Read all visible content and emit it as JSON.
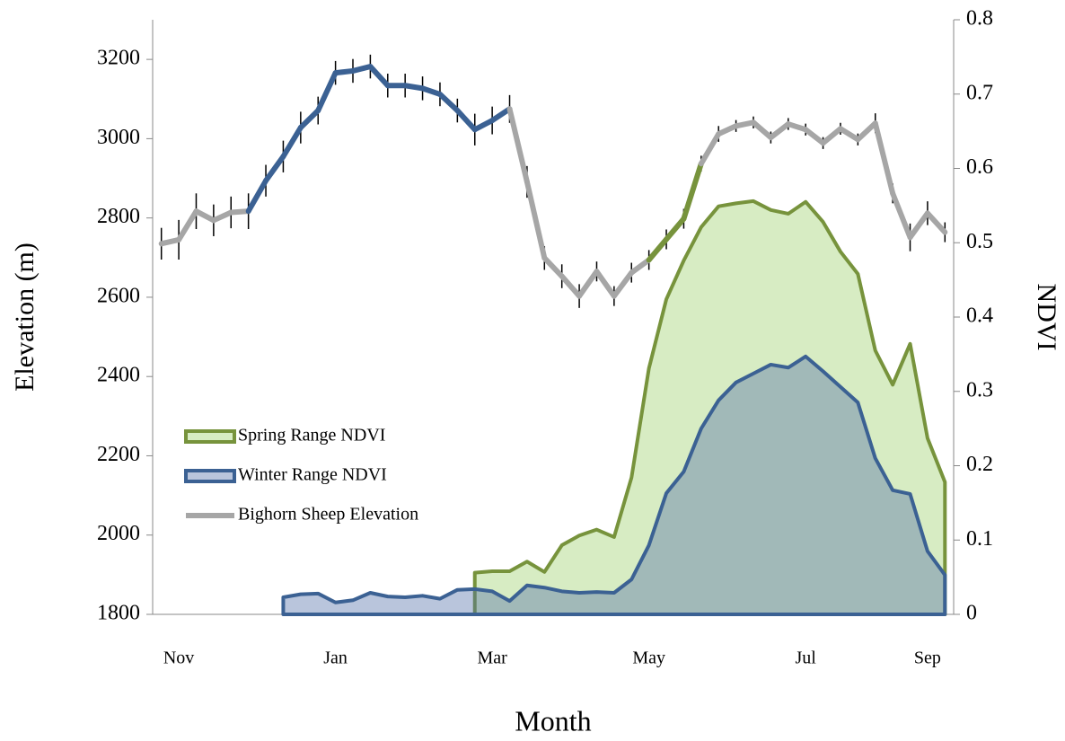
{
  "chart_data": {
    "type": "line",
    "xlabel": "Month",
    "ylabel": "Elevation (m)",
    "y2label": "NDVI",
    "categories": [
      null,
      "Nov",
      null,
      null,
      null,
      null,
      null,
      null,
      null,
      null,
      "Jan",
      null,
      null,
      null,
      null,
      null,
      null,
      null,
      null,
      "Mar",
      null,
      null,
      null,
      null,
      null,
      null,
      null,
      null,
      "May",
      null,
      null,
      null,
      null,
      null,
      null,
      null,
      null,
      "Jul",
      null,
      null,
      null,
      null,
      null,
      null,
      "Sep",
      null
    ],
    "ylim": [
      1800,
      3300
    ],
    "yticks": [
      1800,
      2000,
      2200,
      2400,
      2600,
      2800,
      3000,
      3200
    ],
    "y2lim": [
      0,
      0.8
    ],
    "y2ticks": [
      0,
      0.1,
      0.2,
      0.3,
      0.4,
      0.5,
      0.6,
      0.7,
      0.8
    ],
    "legend": "left",
    "series": [
      {
        "name": "Spring Range NDVI",
        "type": "area",
        "axis": "y2",
        "color": "#77933c",
        "fill": "#d7ecc3",
        "fill_opacity": 1,
        "values": [
          null,
          null,
          null,
          null,
          null,
          null,
          null,
          null,
          null,
          null,
          null,
          null,
          null,
          null,
          null,
          null,
          null,
          null,
          0.056,
          0.058,
          0.058,
          0.071,
          0.057,
          0.093,
          0.106,
          0.114,
          0.104,
          0.184,
          0.331,
          0.424,
          0.476,
          0.521,
          0.549,
          0.553,
          0.556,
          0.544,
          0.539,
          0.555,
          0.528,
          0.488,
          0.458,
          0.355,
          0.309,
          0.364,
          0.237,
          0.178
        ]
      },
      {
        "name": "Winter Range NDVI",
        "type": "area",
        "axis": "y2",
        "color": "#3b6193",
        "fill": "#4f6fa8",
        "fill_opacity": 0.4,
        "values": [
          null,
          null,
          null,
          null,
          null,
          null,
          null,
          0.023,
          0.027,
          0.028,
          0.016,
          0.019,
          0.029,
          0.024,
          0.023,
          0.025,
          0.021,
          0.033,
          0.034,
          0.031,
          0.018,
          0.039,
          0.036,
          0.031,
          0.029,
          0.03,
          0.029,
          0.047,
          0.093,
          0.163,
          0.192,
          0.25,
          0.288,
          0.312,
          0.324,
          0.336,
          0.332,
          0.347,
          0.327,
          0.306,
          0.285,
          0.21,
          0.167,
          0.162,
          0.085,
          0.053
        ]
      },
      {
        "name": "Bighorn Sheep Elevation",
        "type": "line",
        "color": "#a6a6a6",
        "values": [
          2735,
          2745,
          2817,
          2794,
          2814,
          2817,
          2894,
          2955,
          3028,
          3071,
          3166,
          3171,
          3182,
          3134,
          3134,
          3127,
          3112,
          3071,
          3023,
          3046,
          3075,
          2891,
          2699,
          2653,
          2603,
          2665,
          2603,
          2662,
          2694,
          2746,
          2798,
          2937,
          3012,
          3032,
          3041,
          3003,
          3037,
          3023,
          2989,
          3025,
          2998,
          3039,
          2862,
          2751,
          2812,
          2764
        ],
        "errors": [
          40,
          50,
          45,
          40,
          40,
          45,
          40,
          40,
          40,
          35,
          30,
          30,
          30,
          30,
          30,
          30,
          30,
          30,
          40,
          35,
          35,
          40,
          30,
          30,
          30,
          25,
          25,
          25,
          25,
          25,
          25,
          20,
          20,
          15,
          15,
          15,
          15,
          15,
          15,
          15,
          15,
          25,
          25,
          35,
          30,
          25
        ],
        "segment_colors": [
          "#a6a6a6",
          "#a6a6a6",
          "#a6a6a6",
          "#a6a6a6",
          "#a6a6a6",
          "#3b6193",
          "#3b6193",
          "#3b6193",
          "#3b6193",
          "#3b6193",
          "#3b6193",
          "#3b6193",
          "#3b6193",
          "#3b6193",
          "#3b6193",
          "#3b6193",
          "#3b6193",
          "#3b6193",
          "#3b6193",
          "#3b6193",
          "#a6a6a6",
          "#a6a6a6",
          "#a6a6a6",
          "#a6a6a6",
          "#a6a6a6",
          "#a6a6a6",
          "#a6a6a6",
          "#a6a6a6",
          "#77933c",
          "#77933c",
          "#77933c",
          "#a6a6a6",
          "#a6a6a6",
          "#a6a6a6",
          "#a6a6a6",
          "#a6a6a6",
          "#a6a6a6",
          "#a6a6a6",
          "#a6a6a6",
          "#a6a6a6",
          "#a6a6a6",
          "#a6a6a6",
          "#a6a6a6",
          "#a6a6a6",
          "#a6a6a6"
        ]
      }
    ]
  }
}
